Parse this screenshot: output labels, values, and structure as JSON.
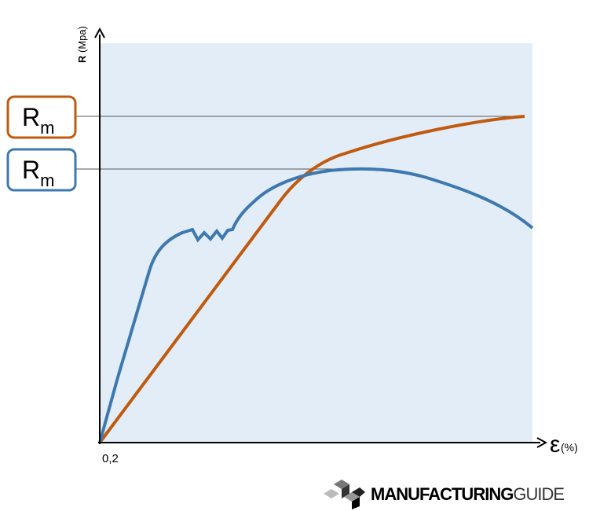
{
  "axes": {
    "y_label": {
      "symbol": "R",
      "unit": "(Mpa)"
    },
    "x_label": {
      "symbol": "ε",
      "unit": "(%)"
    },
    "x_tick": "0,2"
  },
  "labels": [
    {
      "symbol": "R",
      "subscript": "m"
    },
    {
      "symbol": "R",
      "subscript": "m"
    }
  ],
  "logo": {
    "bold": "MANUFACTURING",
    "light": "GUIDE"
  }
}
